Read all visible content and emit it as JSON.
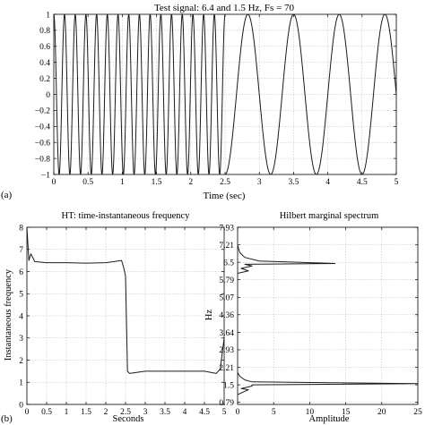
{
  "panel_labels": [
    "(a)",
    "(b)"
  ],
  "chart_data": [
    {
      "type": "line",
      "title": "Test signal: 6.4 and 1.5 Hz, Fs = 70",
      "xlabel": "Time (sec)",
      "ylabel": "",
      "xlim": [
        0,
        5
      ],
      "ylim": [
        -1,
        1
      ],
      "xticks": [
        "0",
        "0.5",
        "1",
        "1.5",
        "2",
        "2.5",
        "3",
        "3.5",
        "4",
        "4.5",
        "5"
      ],
      "yticks": [
        "−1",
        "−0.8",
        "−0.6",
        "−0.4",
        "−0.2",
        "0",
        "0.2",
        "0.4",
        "0.6",
        "0.8",
        "1"
      ],
      "grid": true,
      "series": [
        {
          "segment": "0-2.5 s",
          "frequency_hz": 6.4,
          "amplitude": 1
        },
        {
          "segment": "2.5-5 s",
          "frequency_hz": 1.5,
          "amplitude": 1
        }
      ]
    },
    {
      "type": "line",
      "title": "HT: time-instantaneous frequency",
      "xlabel": "Seconds",
      "ylabel": "Instantaneous frequency",
      "xlim": [
        0,
        5
      ],
      "ylim": [
        0,
        8
      ],
      "xticks": [
        "0",
        "0.5",
        "1",
        "1.5",
        "2",
        "2.5",
        "3",
        "3.5",
        "4",
        "4.5",
        "5"
      ],
      "yticks": [
        "0",
        "1",
        "2",
        "3",
        "4",
        "5",
        "6",
        "7",
        "8"
      ],
      "grid": true,
      "series": [
        {
          "x": [
            0,
            0.05,
            0.1,
            0.2,
            0.5,
            1,
            1.5,
            2,
            2.4,
            2.45,
            2.5,
            2.55,
            2.6,
            3,
            3.5,
            4,
            4.5,
            4.8,
            4.9,
            5
          ],
          "y": [
            8,
            6.5,
            6.8,
            6.45,
            6.4,
            6.4,
            6.38,
            6.4,
            6.5,
            6.2,
            5.8,
            1.5,
            1.4,
            1.5,
            1.5,
            1.5,
            1.5,
            1.4,
            1.6,
            3.0
          ]
        }
      ]
    },
    {
      "type": "line",
      "title": "Hilbert marginal spectrum",
      "xlabel": "Amplitude",
      "ylabel": "Hz",
      "xlim": [
        0,
        25
      ],
      "ylim": [
        0.7,
        7.93
      ],
      "xticks": [
        "0",
        "5",
        "10",
        "15",
        "20",
        "25"
      ],
      "yticks": [
        "0.79",
        "1.5",
        "2.21",
        "2.93",
        "3.64",
        "4.36",
        "5.07",
        "5.79",
        "6.5",
        "7.21",
        "7.93"
      ],
      "grid": true,
      "series": [
        {
          "x": [
            0,
            1.5,
            0.5,
            2,
            1,
            13.5,
            3,
            1,
            0.3,
            0
          ],
          "y": [
            6.05,
            6.15,
            6.25,
            6.35,
            6.42,
            6.45,
            6.55,
            6.7,
            6.9,
            7.2
          ]
        },
        {
          "x": [
            0,
            1.5,
            0.5,
            2,
            2,
            25,
            2,
            1,
            0.3,
            0
          ],
          "y": [
            1.1,
            1.3,
            1.35,
            1.45,
            1.5,
            1.55,
            1.62,
            1.7,
            1.85,
            2.0
          ]
        }
      ]
    }
  ]
}
